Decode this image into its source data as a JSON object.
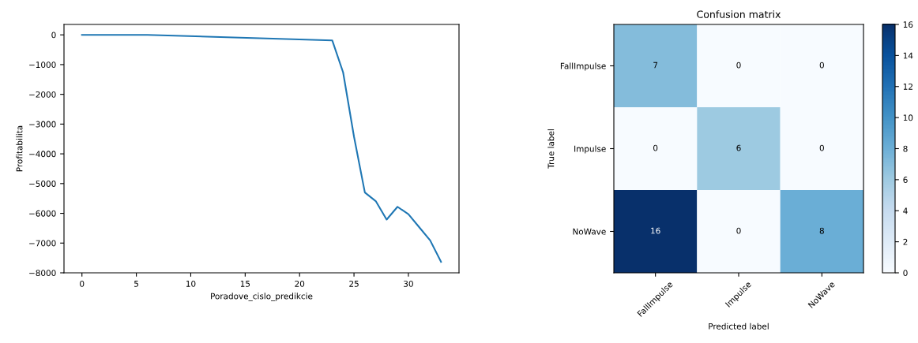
{
  "chart_data": [
    {
      "type": "line",
      "xlabel": "Poradove_cislo_predikcie",
      "ylabel": "Profitabilita",
      "series": [
        {
          "color": "#1f77b4",
          "x": [
            0,
            6,
            23,
            24,
            25,
            26,
            27,
            28,
            29,
            30,
            31,
            32,
            33
          ],
          "values": [
            0,
            0,
            -185,
            -1260,
            -3420,
            -5300,
            -5590,
            -6210,
            -5780,
            -6030,
            -6470,
            -6910,
            -7630
          ]
        }
      ],
      "xlim": [
        -1.65,
        34.65
      ],
      "xticks": [
        0,
        5,
        10,
        15,
        20,
        25,
        30
      ],
      "ylim": [
        -8000,
        350
      ],
      "yticks": [
        0,
        {
          "value": -1000,
          "label": "−1000"
        },
        {
          "value": -2000,
          "label": "−2000"
        },
        {
          "value": -3000,
          "label": "−3000"
        },
        {
          "value": -4000,
          "label": "−4000"
        },
        {
          "value": -5000,
          "label": "−5000"
        },
        {
          "value": -6000,
          "label": "−6000"
        },
        {
          "value": -7000,
          "label": "−7000"
        },
        {
          "value": -8000,
          "label": "−8000"
        }
      ],
      "grid": false
    },
    {
      "type": "heatmap",
      "title": "Confusion matrix",
      "xlabel": "Predicted label",
      "ylabel": "True label",
      "categories": [
        "FallImpulse",
        "Impulse",
        "NoWave"
      ],
      "y_categories": [
        "FallImpulse",
        "Impulse",
        "NoWave"
      ],
      "cells": [
        [
          7,
          0,
          0
        ],
        [
          0,
          6,
          0
        ],
        [
          16,
          0,
          8
        ]
      ],
      "clim": [
        0,
        16
      ],
      "cticks": [
        0,
        2,
        4,
        6,
        8,
        10,
        12,
        14,
        16
      ],
      "data_labels": true
    }
  ]
}
